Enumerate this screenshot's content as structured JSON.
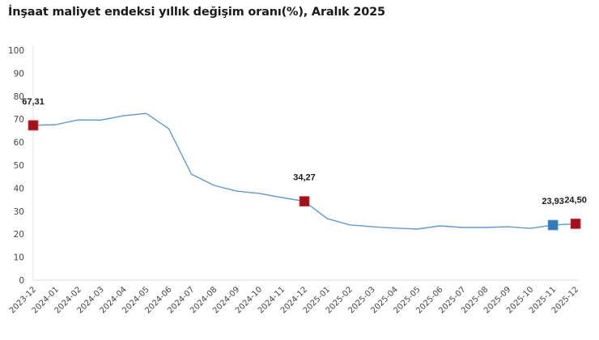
{
  "chart_data": {
    "type": "line",
    "title": "İnşaat maliyet endeksi yıllık değişim oranı(%), Aralık 2025",
    "xlabel": "",
    "ylabel": "",
    "ylim": [
      0,
      100
    ],
    "yticks": [
      0,
      10,
      20,
      30,
      40,
      50,
      60,
      70,
      80,
      90,
      100
    ],
    "grid": false,
    "legend": null,
    "categories": [
      "2023-12",
      "2024-01",
      "2024-02",
      "2024-03",
      "2024-04",
      "2024-05",
      "2024-06",
      "2024-07",
      "2024-08",
      "2024-09",
      "2024-10",
      "2024-11",
      "2024-12",
      "2025-01",
      "2025-02",
      "2025-03",
      "2025-04",
      "2025-05",
      "2025-06",
      "2025-07",
      "2025-08",
      "2025-09",
      "2025-10",
      "2025-11",
      "2025-12"
    ],
    "series": [
      {
        "name": "İnşaat maliyet endeksi yıllık değişim oranı(%)",
        "color": "#5B9BD5",
        "values": [
          67.31,
          67.6,
          69.7,
          69.6,
          71.5,
          72.5,
          65.8,
          46.1,
          41.2,
          38.7,
          37.7,
          35.9,
          34.27,
          26.8,
          24.0,
          23.2,
          22.6,
          22.2,
          23.6,
          22.9,
          22.9,
          23.2,
          22.5,
          23.93,
          24.5
        ]
      }
    ],
    "annotations": [
      {
        "index": 0,
        "label": "67,31",
        "marker_color": "#A50F15"
      },
      {
        "index": 12,
        "label": "34,27",
        "marker_color": "#A50F15"
      },
      {
        "index": 23,
        "label": "23,93",
        "marker_color": "#2E7BC0"
      },
      {
        "index": 24,
        "label": "24,50",
        "marker_color": "#A50F15"
      }
    ]
  }
}
